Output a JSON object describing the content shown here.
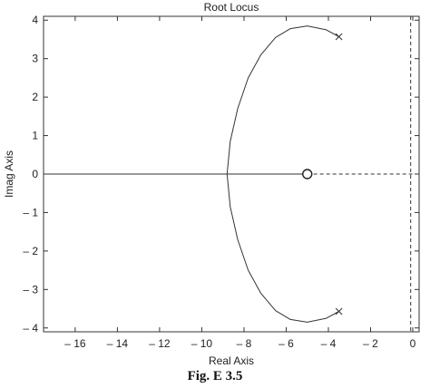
{
  "figure_caption": "Fig. E 3.5",
  "chart_data": {
    "type": "line",
    "title": "Root Locus",
    "xlabel": "Real Axis",
    "ylabel": "Imag Axis",
    "xlim": [
      -17.5,
      0.3
    ],
    "ylim": [
      -4.1,
      4.1
    ],
    "grid": false,
    "x_ticks": [
      -16,
      -14,
      -12,
      -10,
      -8,
      -6,
      -4,
      -2,
      0
    ],
    "x_tick_labels": [
      "– 16",
      "– 14",
      "– 12",
      "– 10",
      "– 8",
      "– 6",
      "– 4",
      "– 2",
      "0"
    ],
    "y_ticks": [
      4,
      3,
      2,
      1,
      0,
      -1,
      -2,
      -3,
      -4
    ],
    "y_tick_labels": [
      "4",
      "3",
      "2",
      "1",
      "0",
      "– 1",
      "– 2",
      "– 3",
      "– 4"
    ],
    "poles": [
      {
        "x": -3.5,
        "y": 3.57
      },
      {
        "x": -3.5,
        "y": -3.57
      }
    ],
    "zeros": [
      {
        "x": -5,
        "y": 0
      }
    ],
    "series": [
      {
        "style": "solid",
        "points": [
          [
            -3.5,
            3.57
          ],
          [
            -4.1,
            3.75
          ],
          [
            -5.0,
            3.85
          ],
          [
            -5.8,
            3.78
          ],
          [
            -6.5,
            3.55
          ],
          [
            -7.2,
            3.1
          ],
          [
            -7.8,
            2.5
          ],
          [
            -8.3,
            1.7
          ],
          [
            -8.65,
            0.85
          ],
          [
            -8.8,
            0.0
          ],
          [
            -8.65,
            -0.85
          ],
          [
            -8.3,
            -1.7
          ],
          [
            -7.8,
            -2.5
          ],
          [
            -7.2,
            -3.1
          ],
          [
            -6.5,
            -3.55
          ],
          [
            -5.8,
            -3.78
          ],
          [
            -5.0,
            -3.85
          ],
          [
            -4.1,
            -3.75
          ],
          [
            -3.5,
            -3.57
          ]
        ]
      },
      {
        "style": "solid",
        "points": [
          [
            -17.5,
            0.0
          ],
          [
            -5.0,
            0.0
          ]
        ]
      },
      {
        "style": "dashed",
        "points": [
          [
            -5.0,
            0.0
          ],
          [
            0.3,
            0.0
          ]
        ]
      },
      {
        "style": "dashed",
        "points": [
          [
            -0.1,
            4.1
          ],
          [
            -0.1,
            -4.1
          ]
        ]
      }
    ]
  }
}
